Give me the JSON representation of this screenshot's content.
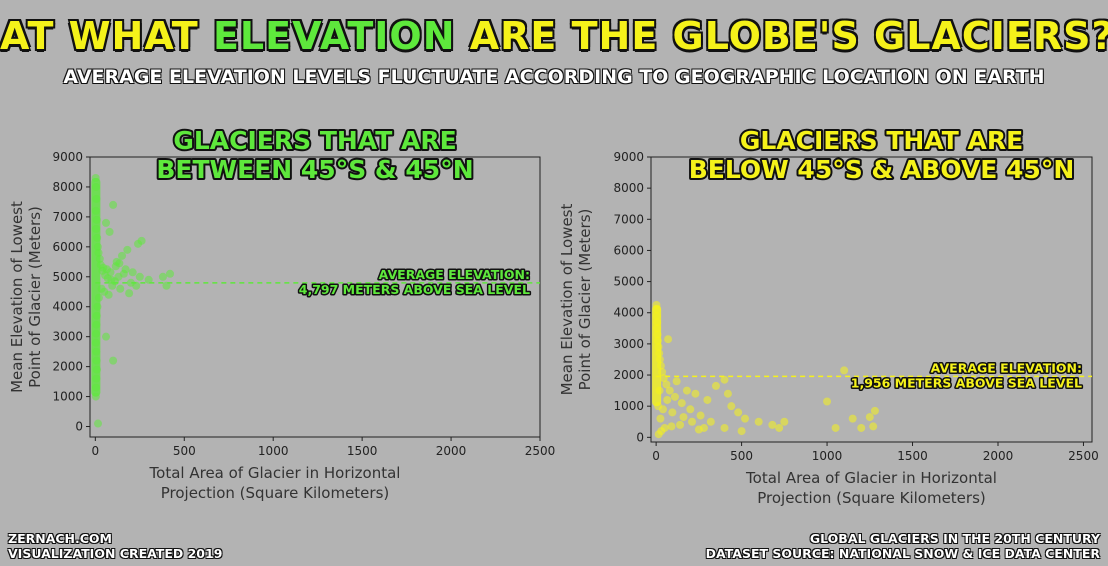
{
  "header": {
    "title_part1": "AT WHAT ",
    "title_highlight": "ELEVATION",
    "title_part2": " ARE THE GLOBE'S GLACIERS?",
    "subtitle": "AVERAGE ELEVATION LEVELS FLUCTUATE ACCORDING TO GEOGRAPHIC LOCATION ON EARTH"
  },
  "footer": {
    "left_line1": "ZERNACH.COM",
    "left_line2": "VISUALIZATION CREATED 2019",
    "right_line1": "GLOBAL GLACIERS IN THE 20TH CENTURY",
    "right_line2": "DATASET SOURCE: NATIONAL SNOW & ICE DATA CENTER"
  },
  "colors": {
    "green": "#5ee83c",
    "yellow": "#f5f21a",
    "background": "#b3b3b3"
  },
  "chart_data": [
    {
      "type": "scatter",
      "title_lines": [
        "GLACIERS THAT ARE",
        "BETWEEN 45°S & 45°N"
      ],
      "xlabel_lines": [
        "Total Area of Glacier in Horizontal",
        "Projection (Square Kilometers)"
      ],
      "ylabel_lines": [
        "Mean Elevation of Lowest",
        "Point of Glacier (Meters)"
      ],
      "xlim": [
        -30,
        2500
      ],
      "ylim": [
        -350,
        9000
      ],
      "xticks": [
        0,
        500,
        1000,
        1500,
        2000,
        2500
      ],
      "yticks": [
        0,
        1000,
        2000,
        3000,
        4000,
        5000,
        6000,
        7000,
        8000,
        9000
      ],
      "color": "#5ee83c",
      "average": {
        "value": 4797,
        "label_line1": "AVERAGE ELEVATION:",
        "label_line2": "4,797 METERS ABOVE SEA LEVEL"
      },
      "points": [
        [
          2,
          8300
        ],
        [
          4,
          8000
        ],
        [
          6,
          7600
        ],
        [
          3,
          7200
        ],
        [
          8,
          6900
        ],
        [
          5,
          6600
        ],
        [
          10,
          6300
        ],
        [
          14,
          6000
        ],
        [
          18,
          5800
        ],
        [
          25,
          5600
        ],
        [
          30,
          5400
        ],
        [
          40,
          5200
        ],
        [
          55,
          5050
        ],
        [
          70,
          4950
        ],
        [
          90,
          4900
        ],
        [
          110,
          4850
        ],
        [
          130,
          5000
        ],
        [
          160,
          5100
        ],
        [
          200,
          4800
        ],
        [
          260,
          6200
        ],
        [
          240,
          6100
        ],
        [
          180,
          5900
        ],
        [
          150,
          5700
        ],
        [
          120,
          5500
        ],
        [
          100,
          7400
        ],
        [
          80,
          6500
        ],
        [
          60,
          6800
        ],
        [
          35,
          4600
        ],
        [
          50,
          4500
        ],
        [
          75,
          4400
        ],
        [
          95,
          4700
        ],
        [
          140,
          4600
        ],
        [
          190,
          4450
        ],
        [
          230,
          4700
        ],
        [
          300,
          4900
        ],
        [
          380,
          5000
        ],
        [
          400,
          4700
        ],
        [
          420,
          5100
        ],
        [
          20,
          4300
        ],
        [
          12,
          4000
        ],
        [
          8,
          3700
        ],
        [
          6,
          3400
        ],
        [
          4,
          3100
        ],
        [
          3,
          2800
        ],
        [
          5,
          2500
        ],
        [
          7,
          2200
        ],
        [
          9,
          1900
        ],
        [
          6,
          1600
        ],
        [
          4,
          1300
        ],
        [
          3,
          1000
        ],
        [
          100,
          2200
        ],
        [
          60,
          3000
        ],
        [
          15,
          100
        ],
        [
          45,
          5300
        ],
        [
          65,
          5250
        ],
        [
          85,
          5150
        ],
        [
          115,
          5350
        ],
        [
          135,
          5450
        ],
        [
          170,
          5250
        ],
        [
          210,
          5150
        ],
        [
          250,
          5000
        ]
      ]
    },
    {
      "type": "scatter",
      "title_lines": [
        "GLACIERS THAT ARE",
        "BELOW 45°S & ABOVE 45°N"
      ],
      "xlabel_lines": [
        "Total Area of Glacier in Horizontal",
        "Projection (Square Kilometers)"
      ],
      "ylabel_lines": [
        "Mean Elevation of Lowest",
        "Point of Glacier (Meters)"
      ],
      "xlim": [
        -30,
        2550
      ],
      "ylim": [
        -150,
        9000
      ],
      "xticks": [
        0,
        500,
        1000,
        1500,
        2000,
        2500
      ],
      "yticks": [
        0,
        1000,
        2000,
        3000,
        4000,
        5000,
        6000,
        7000,
        8000,
        9000
      ],
      "color": "#f5f21a",
      "average": {
        "value": 1956,
        "label_line1": "AVERAGE ELEVATION:",
        "label_line2": "1,956 METERS ABOVE SEA LEVEL"
      },
      "points": [
        [
          2,
          4250
        ],
        [
          4,
          4100
        ],
        [
          3,
          3900
        ],
        [
          6,
          3700
        ],
        [
          5,
          3500
        ],
        [
          8,
          3300
        ],
        [
          10,
          3100
        ],
        [
          14,
          2900
        ],
        [
          18,
          2700
        ],
        [
          22,
          2500
        ],
        [
          28,
          2300
        ],
        [
          35,
          2100
        ],
        [
          45,
          1900
        ],
        [
          60,
          1700
        ],
        [
          80,
          1500
        ],
        [
          110,
          1300
        ],
        [
          150,
          1100
        ],
        [
          200,
          900
        ],
        [
          260,
          700
        ],
        [
          320,
          500
        ],
        [
          400,
          300
        ],
        [
          500,
          200
        ],
        [
          70,
          3150
        ],
        [
          120,
          1800
        ],
        [
          180,
          1500
        ],
        [
          230,
          1400
        ],
        [
          300,
          1200
        ],
        [
          350,
          1650
        ],
        [
          420,
          1400
        ],
        [
          440,
          1000
        ],
        [
          480,
          800
        ],
        [
          520,
          600
        ],
        [
          600,
          500
        ],
        [
          680,
          400
        ],
        [
          720,
          300
        ],
        [
          750,
          500
        ],
        [
          400,
          1850
        ],
        [
          1000,
          1150
        ],
        [
          1050,
          300
        ],
        [
          1100,
          2150
        ],
        [
          1150,
          600
        ],
        [
          1200,
          300
        ],
        [
          1250,
          650
        ],
        [
          1270,
          350
        ],
        [
          1280,
          850
        ],
        [
          15,
          100
        ],
        [
          30,
          200
        ],
        [
          50,
          300
        ],
        [
          90,
          350
        ],
        [
          140,
          400
        ],
        [
          250,
          250
        ],
        [
          20,
          1500
        ],
        [
          12,
          1000
        ],
        [
          25,
          600
        ],
        [
          40,
          900
        ],
        [
          65,
          1200
        ],
        [
          95,
          800
        ],
        [
          160,
          650
        ],
        [
          210,
          500
        ],
        [
          280,
          300
        ]
      ]
    }
  ]
}
